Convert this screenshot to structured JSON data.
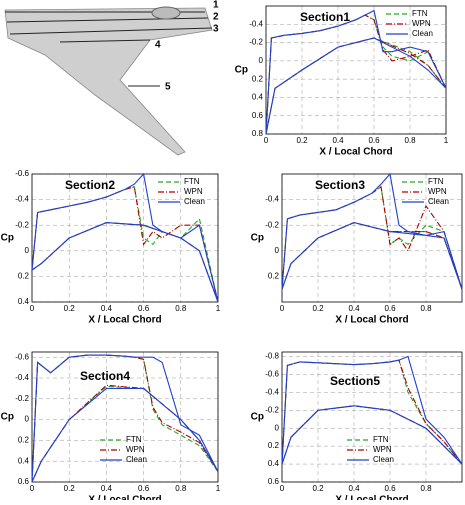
{
  "wing": {
    "labels": [
      "1",
      "2",
      "3",
      "4",
      "5"
    ]
  },
  "chart_data": [
    {
      "type": "line",
      "title": "Section1",
      "xlabel": "X / Local Chord",
      "ylabel": "Cp",
      "legend": "upper right",
      "grid": true,
      "x": [
        1,
        0.9,
        0.8,
        0.7,
        0.65,
        0.6,
        0.55,
        0.5,
        0.4,
        0.3,
        0.2,
        0.1,
        0.03,
        0,
        0.05,
        0.2,
        0.4,
        0.6,
        0.8,
        0.9,
        1
      ],
      "xlim": [
        0,
        1
      ],
      "xticks": [
        0,
        0.2,
        0.4,
        0.6,
        0.8,
        1
      ],
      "ylim": [
        0.8,
        -0.6
      ],
      "yticks": [
        -0.4,
        -0.2,
        0,
        0.2,
        0.4,
        0.6,
        0.8
      ],
      "series": [
        {
          "name": "FTN",
          "color": "#22aa22",
          "dash": "5,3",
          "values": [
            0.3,
            -0.1,
            0,
            -0.05,
            -0.15,
            -0.45,
            -0.5,
            -0.45,
            -0.38,
            -0.33,
            -0.3,
            -0.28,
            -0.25,
            0.8,
            0.3,
            0.1,
            -0.15,
            -0.25,
            -0.1,
            0.05,
            0.3
          ]
        },
        {
          "name": "WPN",
          "color": "#b00000",
          "dash": "6,2,1,2",
          "values": [
            0.3,
            -0.12,
            -0.05,
            0,
            -0.12,
            -0.45,
            -0.5,
            -0.45,
            -0.38,
            -0.33,
            -0.3,
            -0.28,
            -0.25,
            0.8,
            0.3,
            0.1,
            -0.15,
            -0.25,
            -0.08,
            0.05,
            0.3
          ]
        },
        {
          "name": "Clean",
          "color": "#2040d0",
          "dash": "",
          "values": [
            0.3,
            -0.1,
            -0.15,
            -0.1,
            -0.1,
            -0.55,
            -0.5,
            -0.45,
            -0.38,
            -0.33,
            -0.3,
            -0.28,
            -0.25,
            0.8,
            0.3,
            0.1,
            -0.15,
            -0.25,
            -0.05,
            0.1,
            0.3
          ]
        }
      ]
    },
    {
      "type": "line",
      "title": "Section2",
      "xlabel": "X / Local Chord",
      "ylabel": "Cp",
      "legend": "upper right",
      "grid": true,
      "x": [
        1,
        0.9,
        0.8,
        0.7,
        0.65,
        0.6,
        0.55,
        0.5,
        0.4,
        0.3,
        0.2,
        0.1,
        0.03,
        0,
        0.05,
        0.2,
        0.4,
        0.6,
        0.8,
        0.9,
        1
      ],
      "xlim": [
        0,
        1
      ],
      "xticks": [
        0,
        0.2,
        0.4,
        0.6,
        0.8,
        1
      ],
      "ylim": [
        0.4,
        -0.6
      ],
      "yticks": [
        -0.6,
        -0.4,
        -0.2,
        0,
        0.2,
        0.4
      ],
      "series": [
        {
          "name": "FTN",
          "color": "#22aa22",
          "dash": "5,3",
          "values": [
            0.4,
            -0.25,
            -0.1,
            -0.15,
            -0.05,
            -0.1,
            -0.5,
            -0.48,
            -0.42,
            -0.38,
            -0.35,
            -0.32,
            -0.3,
            0.15,
            0.1,
            -0.1,
            -0.22,
            -0.2,
            -0.1,
            0,
            0.4
          ]
        },
        {
          "name": "WPN",
          "color": "#b00000",
          "dash": "6,2,1,2",
          "values": [
            0.4,
            -0.2,
            -0.2,
            -0.1,
            -0.15,
            -0.05,
            -0.5,
            -0.48,
            -0.42,
            -0.38,
            -0.35,
            -0.32,
            -0.3,
            0.15,
            0.1,
            -0.1,
            -0.22,
            -0.2,
            -0.1,
            0,
            0.4
          ]
        },
        {
          "name": "Clean",
          "color": "#2040d0",
          "dash": "",
          "values": [
            0.4,
            -0.2,
            -0.1,
            -0.15,
            -0.2,
            -0.6,
            -0.52,
            -0.48,
            -0.42,
            -0.38,
            -0.35,
            -0.32,
            -0.3,
            0.15,
            0.1,
            -0.1,
            -0.22,
            -0.2,
            -0.1,
            0,
            0.4
          ]
        }
      ]
    },
    {
      "type": "line",
      "title": "Section3",
      "xlabel": "X / Local Chord",
      "ylabel": "Cp",
      "legend": "upper right",
      "grid": true,
      "x": [
        1,
        0.9,
        0.8,
        0.7,
        0.65,
        0.6,
        0.55,
        0.5,
        0.4,
        0.3,
        0.2,
        0.1,
        0.03,
        0,
        0.05,
        0.2,
        0.4,
        0.6,
        0.8,
        0.9,
        1
      ],
      "xlim": [
        0,
        1
      ],
      "xticks": [
        0,
        0.2,
        0.4,
        0.6,
        0.8
      ],
      "ylim": [
        0.4,
        -0.6
      ],
      "yticks": [
        -0.4,
        -0.2,
        0,
        0.2
      ],
      "series": [
        {
          "name": "FTN",
          "color": "#22aa22",
          "dash": "5,3",
          "values": [
            0.3,
            -0.15,
            -0.2,
            -0.05,
            -0.1,
            -0.05,
            -0.5,
            -0.45,
            -0.38,
            -0.32,
            -0.3,
            -0.28,
            -0.25,
            0.3,
            0.1,
            -0.1,
            -0.22,
            -0.15,
            -0.15,
            -0.1,
            0.3
          ]
        },
        {
          "name": "WPN",
          "color": "#b00000",
          "dash": "6,2,1,2",
          "values": [
            0.3,
            -0.15,
            -0.35,
            0,
            -0.1,
            -0.05,
            -0.5,
            -0.45,
            -0.38,
            -0.32,
            -0.3,
            -0.28,
            -0.25,
            0.3,
            0.1,
            -0.1,
            -0.22,
            -0.15,
            -0.15,
            -0.1,
            0.3
          ]
        },
        {
          "name": "Clean",
          "color": "#2040d0",
          "dash": "",
          "values": [
            0.3,
            -0.15,
            -0.12,
            -0.15,
            -0.2,
            -0.6,
            -0.52,
            -0.45,
            -0.38,
            -0.32,
            -0.3,
            -0.28,
            -0.25,
            0.3,
            0.1,
            -0.1,
            -0.22,
            -0.15,
            -0.12,
            -0.1,
            0.3
          ]
        }
      ]
    },
    {
      "type": "line",
      "title": "Section4",
      "xlabel": "X / Local Chord",
      "ylabel": "Cp",
      "legend": "lower center",
      "grid": true,
      "x": [
        1,
        0.9,
        0.8,
        0.7,
        0.65,
        0.6,
        0.55,
        0.5,
        0.4,
        0.3,
        0.2,
        0.1,
        0.03,
        0,
        0.05,
        0.2,
        0.4,
        0.6,
        0.8,
        0.9,
        1
      ],
      "xlim": [
        0,
        1
      ],
      "xticks": [
        0,
        0.2,
        0.4,
        0.6,
        0.8,
        1
      ],
      "ylim": [
        0.6,
        -0.65
      ],
      "yticks": [
        -0.6,
        -0.4,
        -0.2,
        0,
        0.2,
        0.4,
        0.6
      ],
      "series": [
        {
          "name": "FTN",
          "color": "#22aa22",
          "dash": "5,3",
          "values": [
            0.5,
            0.25,
            0.15,
            0.05,
            -0.1,
            -0.58,
            -0.6,
            -0.61,
            -0.62,
            -0.62,
            -0.6,
            -0.45,
            -0.55,
            0.6,
            0.4,
            0,
            -0.32,
            -0.3,
            0,
            0.2,
            0.5
          ]
        },
        {
          "name": "WPN",
          "color": "#b00000",
          "dash": "6,2,1,2",
          "values": [
            0.5,
            0.22,
            0.12,
            0.03,
            -0.12,
            -0.58,
            -0.6,
            -0.61,
            -0.62,
            -0.62,
            -0.6,
            -0.45,
            -0.55,
            0.6,
            0.4,
            0,
            -0.33,
            -0.3,
            0,
            0.2,
            0.5
          ]
        },
        {
          "name": "Clean",
          "color": "#2040d0",
          "dash": "",
          "values": [
            0.5,
            0.15,
            0.05,
            -0.55,
            -0.6,
            -0.6,
            -0.6,
            -0.61,
            -0.62,
            -0.62,
            -0.6,
            -0.45,
            -0.55,
            0.6,
            0.4,
            0,
            -0.3,
            -0.3,
            0,
            0.2,
            0.5
          ]
        }
      ]
    },
    {
      "type": "line",
      "title": "Section5",
      "xlabel": "X / Local Chord",
      "ylabel": "Cp",
      "legend": "lower center",
      "grid": true,
      "x": [
        1,
        0.9,
        0.8,
        0.7,
        0.65,
        0.6,
        0.55,
        0.5,
        0.4,
        0.3,
        0.2,
        0.1,
        0.03,
        0,
        0.05,
        0.2,
        0.4,
        0.6,
        0.8,
        0.9,
        1
      ],
      "xlim": [
        0,
        1
      ],
      "xticks": [
        0,
        0.2,
        0.4,
        0.6,
        0.8
      ],
      "ylim": [
        0.6,
        -0.85
      ],
      "yticks": [
        -0.8,
        -0.6,
        -0.4,
        -0.2,
        0,
        0.2,
        0.4,
        0.6
      ],
      "series": [
        {
          "name": "FTN",
          "color": "#22aa22",
          "dash": "5,3",
          "values": [
            0.4,
            0.15,
            -0.05,
            -0.4,
            -0.76,
            -0.74,
            -0.73,
            -0.72,
            -0.71,
            -0.72,
            -0.73,
            -0.74,
            -0.7,
            0.4,
            0.1,
            -0.2,
            -0.25,
            -0.2,
            0,
            0.2,
            0.4
          ]
        },
        {
          "name": "WPN",
          "color": "#b00000",
          "dash": "6,2,1,2",
          "values": [
            0.4,
            0.15,
            -0.05,
            -0.45,
            -0.76,
            -0.74,
            -0.73,
            -0.72,
            -0.71,
            -0.72,
            -0.73,
            -0.74,
            -0.7,
            0.4,
            0.1,
            -0.2,
            -0.25,
            -0.2,
            0,
            0.2,
            0.4
          ]
        },
        {
          "name": "Clean",
          "color": "#2040d0",
          "dash": "",
          "values": [
            0.4,
            0.1,
            -0.1,
            -0.8,
            -0.76,
            -0.74,
            -0.73,
            -0.72,
            -0.71,
            -0.72,
            -0.73,
            -0.74,
            -0.7,
            0.4,
            0.1,
            -0.2,
            -0.25,
            -0.2,
            0,
            0.2,
            0.4
          ]
        }
      ]
    }
  ]
}
